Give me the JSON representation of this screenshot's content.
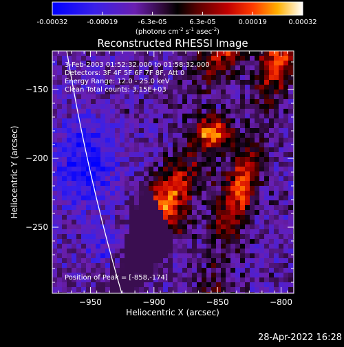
{
  "colorbar": {
    "tick_labels": [
      "-0.00032",
      "-0.00019",
      "-6.3e-05",
      "6.3e-05",
      "0.00019",
      "0.00032"
    ],
    "unit_label": "(photons cm",
    "unit_exp1": "-2",
    "unit_mid": " s",
    "unit_exp2": "-1",
    "unit_end": " asec",
    "unit_exp3": "-2",
    "unit_close": ")"
  },
  "chart_data": {
    "type": "heatmap",
    "title": "Reconstructed RHESSI Image",
    "xlabel": "Heliocentric X (arcsec)",
    "ylabel": "Heliocentric Y (arcsec)",
    "xlim": [
      -980,
      -790
    ],
    "ylim": [
      -298,
      -122
    ],
    "x_ticks": [
      -950,
      -900,
      -850,
      -800
    ],
    "x_tick_labels": [
      "−950",
      "−900",
      "−850",
      "−800"
    ],
    "y_ticks": [
      -150,
      -200,
      -250
    ],
    "y_tick_labels": [
      "−150",
      "−200",
      "−250"
    ],
    "color_range": [
      -0.00032,
      0.00032
    ],
    "peak": [
      -858,
      -174
    ],
    "annotations": [
      "3-Feb-2003 01:52:32.000 to 01:58:32.000",
      "Detectors: 3F 4F 5F 6F 7F 8F, Att 0",
      "Energy Range: 12.0 - 25.0 keV",
      "Clean     Total counts: 3.15E+03",
      "Position of Peak = [-858,-174]"
    ]
  },
  "footer": {
    "timestamp": "28-Apr-2022 16:28"
  }
}
